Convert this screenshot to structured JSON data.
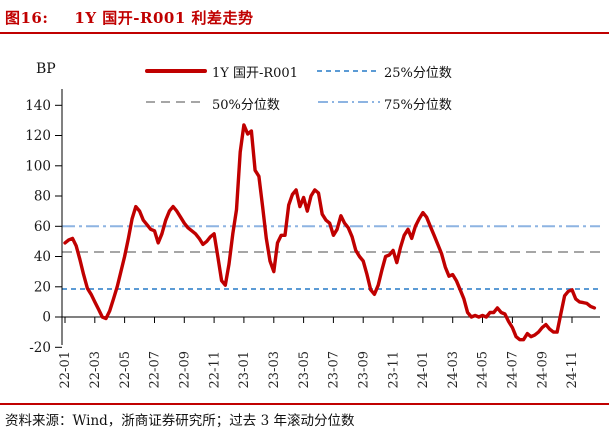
{
  "figure": {
    "label": "图16:",
    "title": "1Y 国开-R001 利差走势"
  },
  "axis_unit": "BP",
  "colors": {
    "accent_red": "#C00000",
    "p25_blue": "#5B9BD5",
    "p50_gray": "#A6A6A6",
    "p75_blue": "#8DB4E2",
    "axis_black": "#000000",
    "label_gray": "#333333"
  },
  "legend": [
    {
      "name": "1Y 国开-R001",
      "style": "solid",
      "color": "#C00000"
    },
    {
      "name": "25%分位数",
      "style": "shortdash",
      "color": "#5B9BD5"
    },
    {
      "name": "50%分位数",
      "style": "longdash",
      "color": "#A6A6A6"
    },
    {
      "name": "75%分位数",
      "style": "dashdot",
      "color": "#8DB4E2"
    }
  ],
  "footer": {
    "text": "资料来源：Wind，浙商证券研究所；过去 3 年滚动分位数"
  },
  "chart_data": {
    "type": "line",
    "title": "1Y 国开-R001 利差走势",
    "xlabel": "",
    "ylabel": "BP",
    "ylim": [
      -20,
      150
    ],
    "yticks": [
      140,
      120,
      100,
      80,
      60,
      40,
      20,
      0,
      -20
    ],
    "grid": false,
    "legend_position": "top",
    "x_unit": "months since 2022-01",
    "xtick_positions": [
      0,
      2,
      4,
      6,
      8,
      10,
      12,
      14,
      16,
      18,
      20,
      22,
      24,
      26,
      28,
      30,
      32,
      34
    ],
    "xtick_labels": [
      "22-01",
      "22-03",
      "22-05",
      "22-07",
      "22-09",
      "22-11",
      "23-01",
      "23-03",
      "23-05",
      "23-07",
      "23-09",
      "23-11",
      "24-01",
      "24-03",
      "24-05",
      "24-07",
      "24-09",
      "24-11"
    ],
    "reference_lines": [
      {
        "name": "25%分位数",
        "value": 18.5,
        "color": "#5B9BD5",
        "dash": "5 4"
      },
      {
        "name": "50%分位数",
        "value": 43,
        "color": "#A6A6A6",
        "dash": "10 6"
      },
      {
        "name": "75%分位数",
        "value": 60,
        "color": "#8DB4E2",
        "dash": "13 4 3 4"
      }
    ],
    "series": [
      {
        "name": "1Y 国开-R001",
        "color": "#C00000",
        "x_start": 0,
        "x_step": 0.25,
        "y": [
          49,
          51,
          52,
          47,
          38,
          28,
          19,
          15,
          10,
          5,
          0,
          -1,
          4,
          12,
          20,
          30,
          40,
          52,
          65,
          73,
          70,
          64,
          61,
          58,
          57,
          49,
          55,
          64,
          70,
          73,
          70,
          66,
          62,
          59,
          57,
          55,
          52,
          48,
          50,
          53,
          55,
          40,
          24,
          21,
          35,
          55,
          71,
          109,
          127,
          121,
          123,
          97,
          93,
          73,
          52,
          37,
          30,
          49,
          54,
          54,
          74,
          81,
          84,
          73,
          79,
          70,
          80,
          84,
          82,
          68,
          64,
          62,
          54,
          58,
          67,
          62,
          59,
          53,
          44,
          40,
          37,
          28,
          18,
          15,
          21,
          31,
          40,
          41,
          44,
          36,
          46,
          54,
          58,
          52,
          60,
          65,
          69,
          66,
          60,
          54,
          48,
          42,
          33,
          27,
          28,
          24,
          18,
          12,
          3,
          0,
          1,
          0,
          1,
          0,
          3,
          3,
          6,
          3,
          2,
          -3,
          -7,
          -13,
          -15,
          -15,
          -11,
          -13,
          -12,
          -10,
          -7,
          -5,
          -8,
          -10,
          -10,
          2,
          14,
          17,
          18,
          12,
          10,
          9.5,
          9,
          7,
          6
        ]
      }
    ]
  }
}
